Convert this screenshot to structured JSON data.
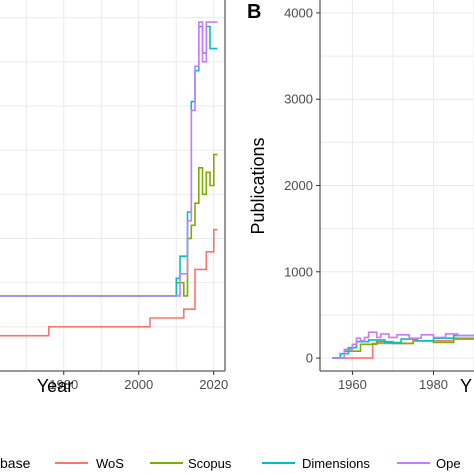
{
  "colors": {
    "WoS": "#f8766d",
    "Scopus": "#7cae00",
    "Dimensions": "#00bfc4",
    "Open": "#c77cff",
    "grid": "#ebebeb",
    "axis": "#333333"
  },
  "legend": {
    "title_fragment": "base",
    "entries": [
      "WoS",
      "Scopus",
      "Dimensions",
      "Ope"
    ]
  },
  "chart_data": [
    {
      "type": "line",
      "panel_tag": "",
      "xlabel": "Year",
      "ylabel": "",
      "x_ticks": [
        1980,
        2000,
        2020
      ],
      "y_ticks": [],
      "xlim": [
        1963,
        2023
      ],
      "ylim": [
        0,
        4200
      ],
      "grid": true,
      "series": [
        {
          "name": "WoS",
          "color_key": "WoS",
          "x": [
            1963,
            1976,
            1976,
            2003,
            2003,
            2012,
            2012,
            2015,
            2015,
            2018,
            2018,
            2020,
            2020,
            2021
          ],
          "y": [
            400,
            400,
            500,
            500,
            600,
            600,
            700,
            700,
            1150,
            1150,
            1350,
            1350,
            1600,
            1600
          ]
        },
        {
          "name": "Scopus",
          "color_key": "Scopus",
          "x": [
            1963,
            2010,
            2010,
            2012,
            2012,
            2013,
            2013,
            2014,
            2014,
            2015,
            2015,
            2016,
            2016,
            2017,
            2017,
            2018,
            2018,
            2019,
            2019,
            2020,
            2020,
            2021
          ],
          "y": [
            850,
            850,
            1000,
            1000,
            850,
            850,
            1500,
            1500,
            1650,
            1650,
            1900,
            1900,
            2300,
            2300,
            2000,
            2000,
            2250,
            2250,
            2100,
            2100,
            2450,
            2450
          ]
        },
        {
          "name": "Dimensions",
          "color_key": "Dimensions",
          "x": [
            1963,
            2010,
            2010,
            2011,
            2011,
            2013,
            2013,
            2014,
            2014,
            2015,
            2015,
            2016,
            2016,
            2017,
            2017,
            2018,
            2018,
            2019,
            2019,
            2021
          ],
          "y": [
            850,
            850,
            1050,
            1050,
            1300,
            1300,
            1800,
            1800,
            3050,
            3050,
            3400,
            3400,
            3900,
            3900,
            3600,
            3600,
            3900,
            3900,
            3650,
            3650
          ]
        },
        {
          "name": "Ope",
          "color_key": "Open",
          "x": [
            1963,
            2011,
            2011,
            2013,
            2013,
            2014,
            2014,
            2015,
            2015,
            2016,
            2016,
            2017,
            2017,
            2018,
            2018,
            2019,
            2019,
            2021
          ],
          "y": [
            850,
            850,
            1100,
            1100,
            1700,
            1700,
            2950,
            2950,
            3450,
            3450,
            3950,
            3950,
            3500,
            3500,
            3950,
            3950,
            3950,
            3950
          ]
        }
      ]
    },
    {
      "type": "line",
      "panel_tag": "B",
      "xlabel": "Y",
      "ylabel": "Publications",
      "x_ticks": [
        1960,
        1980
      ],
      "y_ticks": [
        0,
        1000,
        2000,
        3000,
        4000
      ],
      "xlim": [
        1952,
        1990
      ],
      "ylim": [
        -150,
        4150
      ],
      "grid": true,
      "series": [
        {
          "name": "WoS",
          "color_key": "WoS",
          "x": [
            1955,
            1965,
            1965,
            1975,
            1975,
            1985,
            1985,
            1990
          ],
          "y": [
            0,
            0,
            170,
            170,
            200,
            200,
            230,
            230
          ]
        },
        {
          "name": "Scopus",
          "color_key": "Scopus",
          "x": [
            1955,
            1958,
            1958,
            1962,
            1962,
            1966,
            1966,
            1970,
            1970,
            1975,
            1975,
            1980,
            1980,
            1985,
            1985,
            1990
          ],
          "y": [
            0,
            0,
            80,
            80,
            160,
            160,
            190,
            190,
            170,
            170,
            200,
            200,
            180,
            180,
            220,
            220
          ]
        },
        {
          "name": "Dimensions",
          "color_key": "Dimensions",
          "x": [
            1955,
            1957,
            1957,
            1959,
            1959,
            1961,
            1961,
            1964,
            1964,
            1968,
            1968,
            1972,
            1972,
            1976,
            1976,
            1980,
            1980,
            1985,
            1985,
            1990
          ],
          "y": [
            0,
            0,
            50,
            50,
            120,
            120,
            190,
            190,
            210,
            210,
            180,
            180,
            220,
            220,
            200,
            200,
            230,
            230,
            260,
            260
          ]
        },
        {
          "name": "Ope",
          "color_key": "Open",
          "x": [
            1955,
            1958,
            1958,
            1960,
            1960,
            1961,
            1961,
            1962,
            1962,
            1963,
            1963,
            1964,
            1964,
            1966,
            1966,
            1967,
            1967,
            1969,
            1969,
            1971,
            1971,
            1974,
            1974,
            1977,
            1977,
            1980,
            1980,
            1983,
            1983,
            1986,
            1986,
            1990
          ],
          "y": [
            0,
            0,
            100,
            100,
            160,
            160,
            230,
            230,
            200,
            200,
            240,
            240,
            300,
            300,
            240,
            240,
            280,
            280,
            240,
            240,
            270,
            270,
            230,
            230,
            270,
            270,
            240,
            240,
            280,
            280,
            260,
            260
          ]
        }
      ]
    }
  ]
}
